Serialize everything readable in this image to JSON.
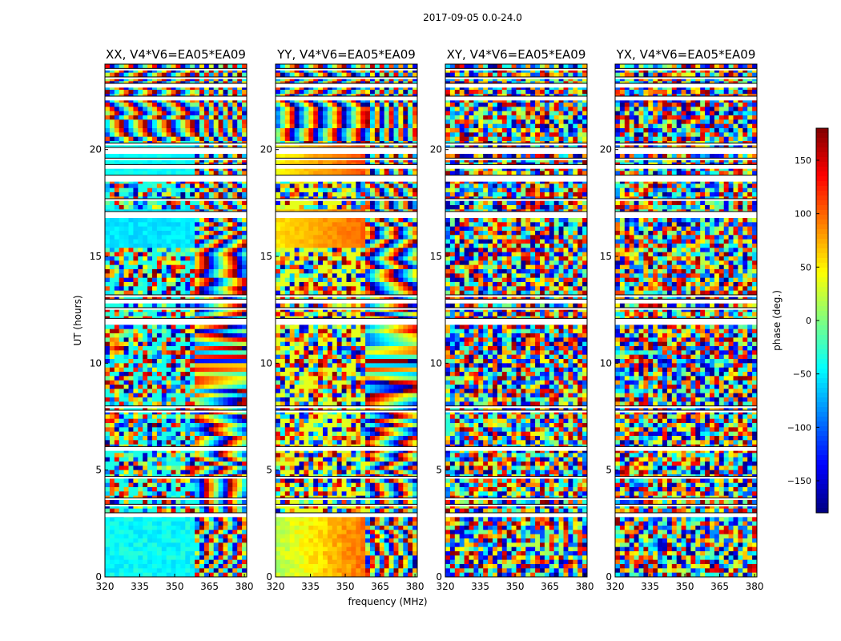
{
  "figure_title": "2017-09-05 0.0-24.0",
  "chart_data": [
    {
      "type": "heatmap",
      "title": "XX, V4*V6=EA05*EA09",
      "pattern": "xx",
      "xlabel": "",
      "ylabel": "UT (hours)",
      "xlim": [
        320,
        381
      ],
      "ylim": [
        0,
        24
      ],
      "xticks": [
        320,
        335,
        350,
        365,
        380
      ],
      "yticks": [
        0,
        5,
        10,
        15,
        20
      ],
      "color_metric": "phase (deg.)"
    },
    {
      "type": "heatmap",
      "title": "YY, V4*V6=EA05*EA09",
      "pattern": "yy",
      "xlabel": "frequency (MHz)",
      "ylabel": "",
      "xlim": [
        320,
        381
      ],
      "ylim": [
        0,
        24
      ],
      "xticks": [
        320,
        335,
        350,
        365,
        380
      ],
      "yticks": [
        0,
        5,
        10,
        15,
        20
      ],
      "color_metric": "phase (deg.)"
    },
    {
      "type": "heatmap",
      "title": "XY, V4*V6=EA05*EA09",
      "pattern": "cross",
      "xlabel": "",
      "ylabel": "",
      "xlim": [
        320,
        381
      ],
      "ylim": [
        0,
        24
      ],
      "xticks": [
        320,
        335,
        350,
        365,
        380
      ],
      "yticks": [
        0,
        5,
        10,
        15,
        20
      ],
      "color_metric": "phase (deg.)"
    },
    {
      "type": "heatmap",
      "title": "YX, V4*V6=EA05*EA09",
      "pattern": "cross",
      "xlabel": "",
      "ylabel": "",
      "xlim": [
        320,
        381
      ],
      "ylim": [
        0,
        24
      ],
      "xticks": [
        320,
        335,
        350,
        365,
        380
      ],
      "yticks": [
        0,
        5,
        10,
        15,
        20
      ],
      "color_metric": "phase (deg.)"
    }
  ],
  "colorbar": {
    "label": "phase (deg.)",
    "range": [
      -180,
      180
    ],
    "ticks": [
      150,
      100,
      50,
      0,
      -50,
      -100,
      -150
    ],
    "tick_labels": [
      "150",
      "100",
      "50",
      "0",
      "−50",
      "−100",
      "−150"
    ],
    "colormap": "jet"
  },
  "flagged_time_gaps_hours": [
    [
      2.8,
      3.0
    ],
    [
      3.3,
      3.4
    ],
    [
      3.6,
      3.7
    ],
    [
      4.6,
      4.7
    ],
    [
      5.9,
      6.1
    ],
    [
      7.7,
      7.8
    ],
    [
      7.9,
      8.0
    ],
    [
      11.8,
      12.1
    ],
    [
      12.5,
      12.6
    ],
    [
      12.8,
      13.0
    ],
    [
      13.1,
      13.2
    ],
    [
      16.8,
      17.1
    ],
    [
      17.6,
      17.7
    ],
    [
      18.5,
      18.8
    ],
    [
      19.1,
      19.3
    ],
    [
      19.5,
      19.6
    ],
    [
      19.8,
      20.1
    ],
    [
      20.2,
      20.3
    ],
    [
      22.3,
      22.5
    ],
    [
      22.9,
      23.1
    ],
    [
      23.3,
      23.4
    ],
    [
      23.7,
      23.8
    ]
  ]
}
